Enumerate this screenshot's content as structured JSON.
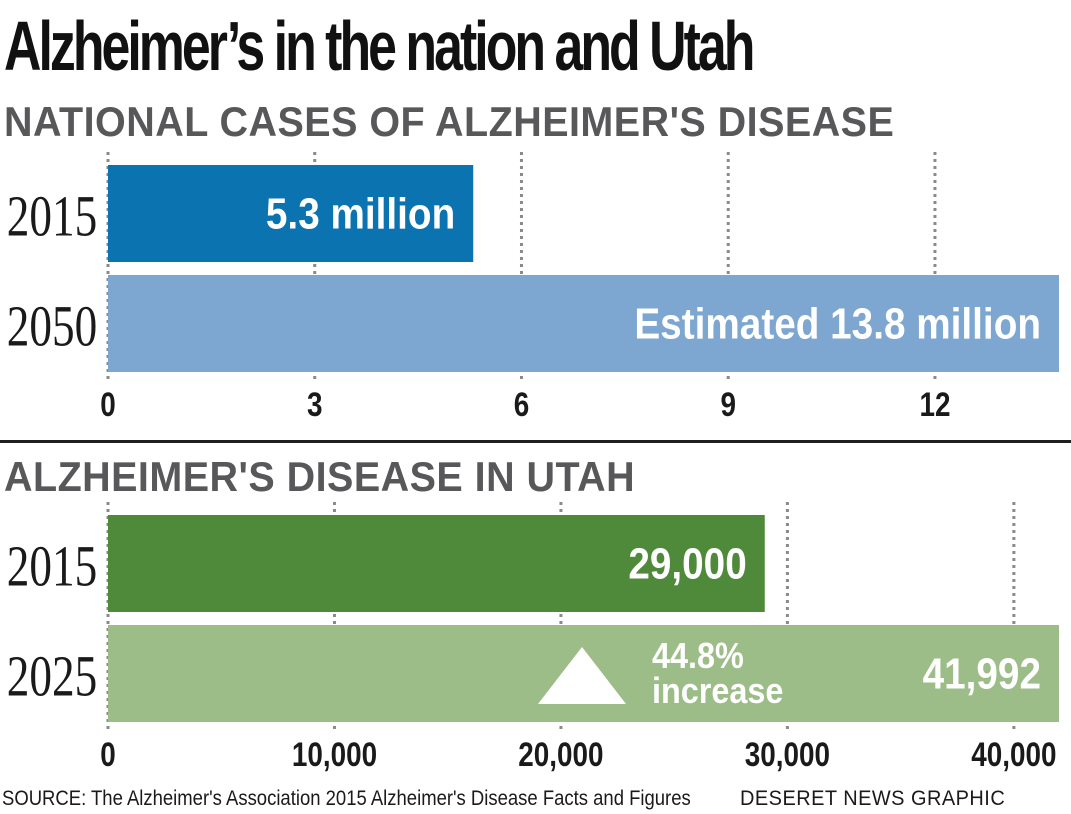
{
  "title": "Alzheimer’s in the nation and Utah",
  "chart_data": [
    {
      "type": "bar",
      "orientation": "horizontal",
      "title": "NATIONAL CASES OF ALZHEIMER'S DISEASE",
      "unit": "million",
      "categories": [
        "2015",
        "2050"
      ],
      "values": [
        5.3,
        13.8
      ],
      "labels": [
        "5.3 million",
        "Estimated 13.8 million"
      ],
      "colors": [
        "#0b74b0",
        "#7da6d1"
      ],
      "xlim": [
        0,
        13.8
      ],
      "xticks": [
        0,
        3,
        6,
        9,
        12
      ],
      "xtick_labels": [
        "0",
        "3",
        "6",
        "9",
        "12"
      ],
      "grid": "vertical dotted"
    },
    {
      "type": "bar",
      "orientation": "horizontal",
      "title": "ALZHEIMER'S DISEASE IN UTAH",
      "categories": [
        "2015",
        "2025"
      ],
      "values": [
        29000,
        41992
      ],
      "labels": [
        "29,000",
        "41,992"
      ],
      "colors": [
        "#4f8a3a",
        "#9dbd88"
      ],
      "xlim": [
        0,
        41992
      ],
      "xticks": [
        0,
        10000,
        20000,
        30000,
        40000
      ],
      "xtick_labels": [
        "0",
        "10,000",
        "20,000",
        "30,000",
        "40,000"
      ],
      "grid": "vertical dotted",
      "annotation": {
        "line1": "44.8%",
        "line2": "increase",
        "icon": "up-triangle-icon"
      }
    }
  ],
  "source": "SOURCE: The Alzheimer's Association 2015 Alzheimer's Disease Facts and Figures",
  "credit": "DESERET NEWS GRAPHIC"
}
